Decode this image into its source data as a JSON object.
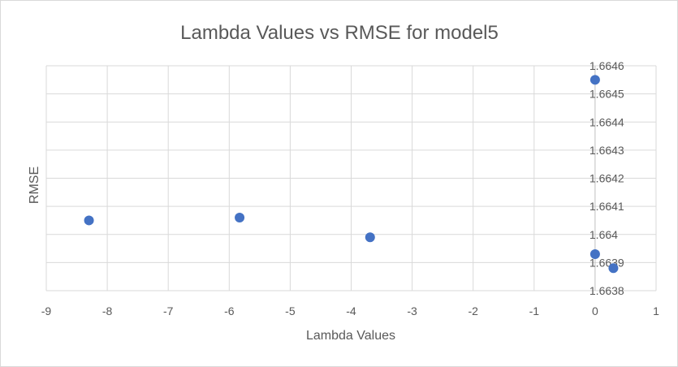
{
  "chart_data": {
    "type": "scatter",
    "title": "Lambda Values vs RMSE for model5",
    "xlabel": "Lambda Values",
    "ylabel": "RMSE",
    "xlim": [
      -9,
      1
    ],
    "ylim": [
      1.6638,
      1.6646
    ],
    "x_ticks": [
      "-9",
      "-8",
      "-7",
      "-6",
      "-5",
      "-4",
      "-3",
      "-2",
      "-1",
      "0",
      "1"
    ],
    "y_ticks": [
      "1.6638",
      "1.6639",
      "1.664",
      "1.6641",
      "1.6642",
      "1.6643",
      "1.6644",
      "1.6645",
      "1.6646"
    ],
    "grid": true,
    "legend": "none",
    "series": [
      {
        "color": "#4472c4",
        "points": [
          {
            "x": -8.3,
            "y": 1.66405
          },
          {
            "x": -5.83,
            "y": 1.66406
          },
          {
            "x": -3.69,
            "y": 1.66399
          },
          {
            "x": 0.0,
            "y": 1.66393
          },
          {
            "x": 0.3,
            "y": 1.66388
          },
          {
            "x": 0.0,
            "y": 1.66455
          }
        ]
      }
    ]
  }
}
